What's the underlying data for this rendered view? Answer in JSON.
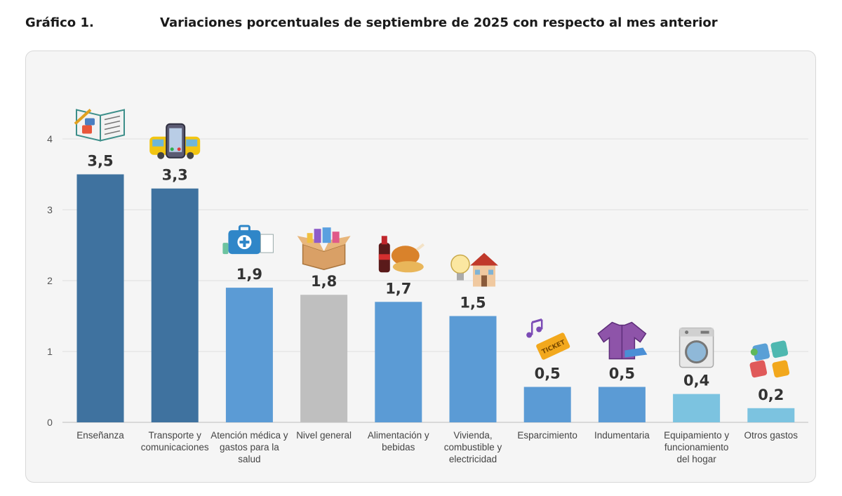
{
  "header": {
    "figure_label": "Gráfico 1.",
    "title": "Variaciones porcentuales de septiembre de 2025 con respecto al mes anterior"
  },
  "chart_data": {
    "type": "bar",
    "title": "Variaciones porcentuales de septiembre de 2025 con respecto al mes anterior",
    "categories": [
      "Enseñanza",
      "Transporte y comunicaciones",
      "Atención médica y gastos para la salud",
      "Nivel general",
      "Alimentación y bebidas",
      "Vivienda, combustible y electricidad",
      "Esparcimiento",
      "Indumentaria",
      "Equipamiento y funcionamiento del hogar",
      "Otros gastos"
    ],
    "category_lines": [
      [
        "Enseñanza"
      ],
      [
        "Transporte y",
        "comunicaciones"
      ],
      [
        "Atención médica y",
        "gastos para la",
        "salud"
      ],
      [
        "Nivel general"
      ],
      [
        "Alimentación y",
        "bebidas"
      ],
      [
        "Vivienda,",
        "combustible y",
        "electricidad"
      ],
      [
        "Esparcimiento"
      ],
      [
        "Indumentaria"
      ],
      [
        "Equipamiento y",
        "funcionamiento",
        "del hogar"
      ],
      [
        "Otros gastos"
      ]
    ],
    "values": [
      3.5,
      3.3,
      1.9,
      1.8,
      1.7,
      1.5,
      0.5,
      0.5,
      0.4,
      0.2
    ],
    "value_labels": [
      "3,5",
      "3,3",
      "1,9",
      "1,8",
      "1,7",
      "1,5",
      "0,5",
      "0,5",
      "0,4",
      "0,2"
    ],
    "bar_colors": [
      "#3f729f",
      "#3f729f",
      "#5b9bd5",
      "#bfbfbf",
      "#5b9bd5",
      "#5b9bd5",
      "#5b9bd5",
      "#5b9bd5",
      "#7cc3e0",
      "#7cc3e0"
    ],
    "icons": [
      "book-icon",
      "bus-phone-icon",
      "medical-kit-icon",
      "shopping-box-icon",
      "food-drink-icon",
      "house-lightbulb-icon",
      "ticket-music-icon",
      "clothing-icon",
      "washing-machine-icon",
      "puzzle-money-icon"
    ],
    "ylim": [
      0,
      4
    ],
    "yticks": [
      0,
      1,
      2,
      3,
      4
    ],
    "grid": true,
    "xlabel": "",
    "ylabel": ""
  }
}
